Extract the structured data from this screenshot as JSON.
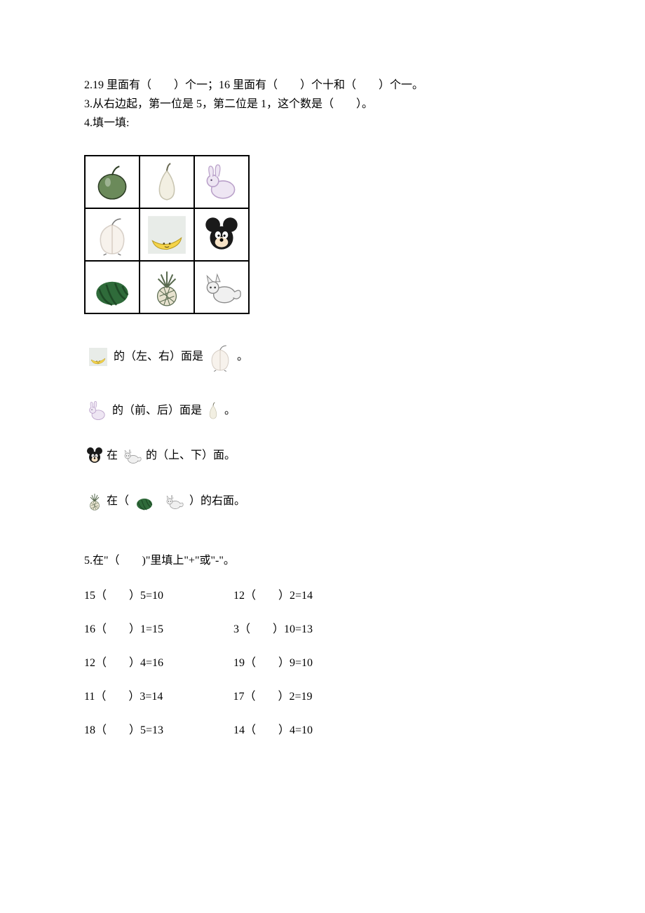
{
  "q2": "2.19 里面有（　　）个一；16 里面有（　　）个十和（　　）个一。",
  "q3": "3.从右边起，第一位是 5，第二位是 1，这个数是（　　）。",
  "q4": "4.填一填:",
  "grid": {
    "items": [
      [
        "apple",
        "pear",
        "rabbit"
      ],
      [
        "peach",
        "banana",
        "mickey"
      ],
      [
        "watermelon",
        "pineapple",
        "fox"
      ]
    ]
  },
  "s1": {
    "left_icon": "banana",
    "text1": "的（左、右）面是",
    "right_icon": "peach",
    "text2": "。"
  },
  "s2": {
    "left_icon": "rabbit",
    "text1": "的（前、后）面是",
    "right_icon": "pear",
    "text2": "。"
  },
  "s3": {
    "left_icon": "mickey",
    "text1": "在",
    "mid_icon": "fox",
    "text2": "的（上、下）面。"
  },
  "s4": {
    "left_icon": "pineapple",
    "text1": "在（",
    "mid_icon1": "watermelon",
    "mid_icon2": "fox",
    "text2": "）的右面。"
  },
  "q5": {
    "title": "5.在\"（　　)\"里填上\"+\"或\"-\"。",
    "rows": [
      [
        "15（　　）5=10",
        "12（　　）2=14"
      ],
      [
        "16（　　）1=15",
        "3（　　）10=13"
      ],
      [
        "12（　　）4=16",
        "19（　　）9=10"
      ],
      [
        "11（　　）3=14",
        "17（　　）2=19"
      ],
      [
        "18（　　）5=13",
        "14（　　）4=10"
      ]
    ]
  },
  "colors": {
    "apple": "#6b8a5a",
    "pear": "#c8c4b0",
    "rabbit": "#b9a0c9",
    "peach": "#d8d0c8",
    "banana_body": "#f5d44a",
    "banana_bg": "#e8ece8",
    "mickey": "#1a1a1a",
    "watermelon": "#2f6b3a",
    "watermelon_dark": "#1e4a26",
    "pineapple": "#5a6b50",
    "fox": "#888888"
  }
}
